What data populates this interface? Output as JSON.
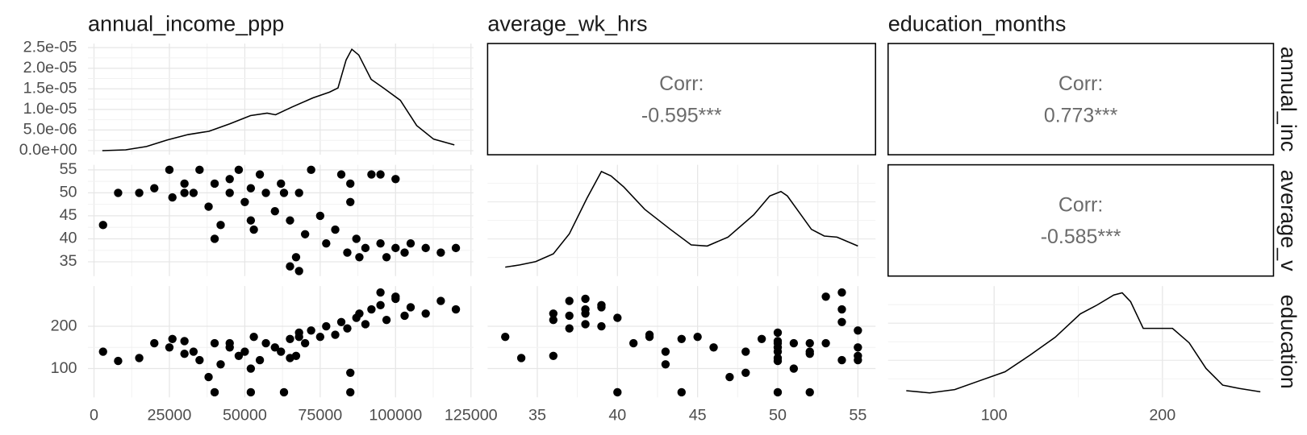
{
  "chart_data": {
    "type": "pairs",
    "columns": [
      {
        "label": "annual_income_ppp",
        "xlim": [
          -2000,
          125800
        ],
        "xticks": [
          0,
          25000,
          50000,
          75000,
          100000,
          125000
        ]
      },
      {
        "label": "average_wk_hrs",
        "xlim": [
          31.9,
          56.1
        ],
        "xticks": [
          35,
          40,
          45,
          50,
          55
        ]
      },
      {
        "label": "education_months",
        "xlim": [
          37,
          266
        ],
        "xticks": [
          100,
          200
        ]
      }
    ],
    "rows": [
      {
        "label": "annual_inc",
        "ylim": [
          -1e-06,
          2.6e-05
        ],
        "yticks": [
          {
            "value": 0,
            "label": "0.0e+00"
          },
          {
            "value": 5e-06,
            "label": "5.0e-06"
          },
          {
            "value": 1e-05,
            "label": "1.0e-05"
          },
          {
            "value": 1.5e-05,
            "label": "1.5e-05"
          },
          {
            "value": 2e-05,
            "label": "2.0e-05"
          },
          {
            "value": 2.5e-05,
            "label": "2.5e-05"
          }
        ]
      },
      {
        "label": "average_v",
        "ylim": [
          31.9,
          56.1
        ],
        "yticks": [
          35,
          40,
          45,
          50,
          55
        ]
      },
      {
        "label": "education",
        "ylim": [
          32,
          295
        ],
        "yticks": [
          100,
          200
        ]
      }
    ],
    "grid": true,
    "panels": [
      {
        "type": "density",
        "color": "#000000",
        "x": [
          2760,
          10500,
          17400,
          24300,
          31200,
          38100,
          45000,
          51900,
          57400,
          60200,
          65700,
          72600,
          78100,
          80900,
          83600,
          85500,
          87800,
          91900,
          96000,
          101600,
          107000,
          112600,
          119500
        ],
        "values": [
          0,
          2e-07,
          1e-06,
          2.6e-06,
          3.9e-06,
          4.7e-06,
          6.5e-06,
          8.5e-06,
          9.1e-06,
          8.7e-06,
          1.06e-05,
          1.28e-05,
          1.42e-05,
          1.52e-05,
          2.2e-05,
          2.46e-05,
          2.32e-05,
          1.73e-05,
          1.52e-05,
          1.22e-05,
          6.1e-06,
          2.8e-06,
          1.4e-06
        ]
      },
      {
        "type": "corr",
        "label": "Corr:",
        "values": [
          -0.595
        ],
        "value_labels": [
          "-0.595***"
        ]
      },
      {
        "type": "corr",
        "label": "Corr:",
        "values": [
          0.773
        ],
        "value_labels": [
          "0.773***"
        ]
      },
      {
        "type": "scatter",
        "color": "#000000",
        "x": [
          3000,
          8000,
          15000,
          20000,
          25000,
          26000,
          30000,
          33000,
          35000,
          38000,
          40000,
          42000,
          45000,
          48000,
          50000,
          52000,
          53000,
          55000,
          57000,
          60000,
          62000,
          65000,
          67000,
          68000,
          70000,
          72000,
          75000,
          77000,
          80000,
          82000,
          84000,
          85000,
          87000,
          88000,
          90000,
          92000,
          95000,
          97000,
          100000,
          103000,
          105000,
          110000,
          115000,
          120000,
          65000,
          45000,
          30000,
          40000,
          52000,
          63000,
          85000,
          95000,
          100000,
          68000
        ],
        "values": [
          43,
          50,
          50,
          51,
          55,
          49,
          52,
          50,
          55,
          47,
          52,
          43,
          50,
          55,
          48,
          51,
          42,
          54,
          50,
          46,
          52,
          44,
          36,
          50,
          41,
          55,
          45,
          39,
          42,
          54,
          37,
          48,
          40,
          36,
          38,
          54,
          39,
          36,
          38,
          37,
          39,
          38,
          37,
          38,
          34,
          53,
          50,
          40,
          44,
          50,
          52,
          54,
          53,
          33
        ]
      },
      {
        "type": "density",
        "color": "#000000",
        "ylim": [
          0,
          1
        ],
        "x": [
          33.0,
          33.9,
          34.9,
          36.0,
          37.0,
          38.1,
          39.0,
          39.6,
          40.4,
          41.7,
          43.3,
          44.6,
          45.6,
          46.9,
          48.5,
          49.5,
          50.2,
          50.6,
          51.4,
          52.1,
          52.9,
          53.7,
          55.0
        ],
        "values": [
          0.08,
          0.1,
          0.13,
          0.2,
          0.38,
          0.7,
          0.94,
          0.9,
          0.8,
          0.6,
          0.42,
          0.28,
          0.27,
          0.35,
          0.55,
          0.72,
          0.76,
          0.72,
          0.56,
          0.42,
          0.36,
          0.35,
          0.27
        ]
      },
      {
        "type": "corr",
        "label": "Corr:",
        "values": [
          -0.585
        ],
        "value_labels": [
          "-0.585***"
        ]
      },
      {
        "type": "scatter",
        "color": "#000000",
        "x": [
          3000,
          8000,
          15000,
          20000,
          25000,
          26000,
          30000,
          33000,
          35000,
          38000,
          40000,
          42000,
          45000,
          48000,
          50000,
          52000,
          53000,
          55000,
          57000,
          60000,
          62000,
          65000,
          67000,
          68000,
          70000,
          72000,
          75000,
          77000,
          80000,
          82000,
          84000,
          85000,
          87000,
          88000,
          90000,
          92000,
          95000,
          97000,
          100000,
          103000,
          105000,
          110000,
          115000,
          120000,
          65000,
          45000,
          30000,
          40000,
          52000,
          63000,
          85000,
          95000,
          100000,
          68000
        ],
        "values": [
          140,
          118,
          125,
          160,
          150,
          170,
          135,
          140,
          120,
          80,
          160,
          110,
          150,
          130,
          140,
          100,
          175,
          120,
          160,
          150,
          140,
          170,
          130,
          185,
          160,
          190,
          175,
          200,
          180,
          210,
          195,
          90,
          220,
          230,
          205,
          240,
          250,
          215,
          265,
          225,
          245,
          230,
          260,
          240,
          125,
          160,
          165,
          44,
          44,
          44,
          44,
          280,
          270,
          175
        ]
      },
      {
        "type": "scatter",
        "color": "#000000",
        "x": [
          43,
          50,
          50,
          51,
          55,
          49,
          52,
          50,
          55,
          47,
          52,
          43,
          50,
          55,
          48,
          51,
          42,
          54,
          50,
          46,
          52,
          44,
          36,
          50,
          41,
          55,
          45,
          39,
          42,
          54,
          37,
          48,
          40,
          36,
          38,
          54,
          39,
          36,
          38,
          37,
          39,
          38,
          37,
          38,
          34,
          53,
          50,
          40,
          44,
          50,
          52,
          54,
          53,
          33
        ],
        "values": [
          140,
          118,
          125,
          160,
          150,
          170,
          135,
          140,
          120,
          80,
          160,
          110,
          150,
          130,
          140,
          100,
          175,
          120,
          160,
          150,
          140,
          170,
          130,
          185,
          160,
          190,
          175,
          200,
          180,
          210,
          195,
          90,
          220,
          230,
          205,
          240,
          250,
          215,
          265,
          225,
          245,
          230,
          260,
          240,
          125,
          160,
          165,
          44,
          44,
          44,
          44,
          280,
          270,
          175
        ]
      },
      {
        "type": "density",
        "color": "#000000",
        "ylim": [
          0,
          1
        ],
        "x": [
          47.8,
          61.7,
          76.6,
          91.5,
          106.5,
          121.4,
          136.3,
          151.2,
          161.2,
          171.1,
          176.1,
          181.1,
          188.6,
          196.0,
          206.0,
          215.9,
          225.9,
          235.8,
          245.8,
          258.2
        ],
        "values": [
          0.06,
          0.04,
          0.07,
          0.15,
          0.23,
          0.38,
          0.54,
          0.75,
          0.83,
          0.92,
          0.94,
          0.86,
          0.62,
          0.62,
          0.62,
          0.49,
          0.26,
          0.11,
          0.08,
          0.05
        ]
      }
    ]
  }
}
